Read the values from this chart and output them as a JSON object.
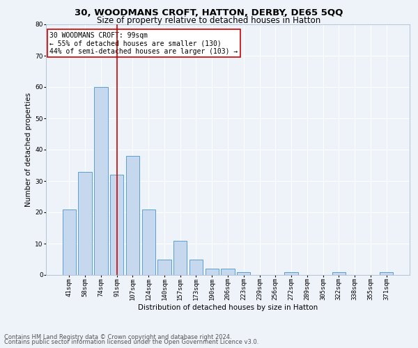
{
  "title": "30, WOODMANS CROFT, HATTON, DERBY, DE65 5QQ",
  "subtitle": "Size of property relative to detached houses in Hatton",
  "xlabel": "Distribution of detached houses by size in Hatton",
  "ylabel": "Number of detached properties",
  "categories": [
    "41sqm",
    "58sqm",
    "74sqm",
    "91sqm",
    "107sqm",
    "124sqm",
    "140sqm",
    "157sqm",
    "173sqm",
    "190sqm",
    "206sqm",
    "223sqm",
    "239sqm",
    "256sqm",
    "272sqm",
    "289sqm",
    "305sqm",
    "322sqm",
    "338sqm",
    "355sqm",
    "371sqm"
  ],
  "values": [
    21,
    33,
    60,
    32,
    38,
    21,
    5,
    11,
    5,
    2,
    2,
    1,
    0,
    0,
    1,
    0,
    0,
    1,
    0,
    0,
    1
  ],
  "bar_color": "#c5d8ee",
  "bar_edge_color": "#5a9fd4",
  "red_line_index": 3,
  "annotation_line1": "30 WOODMANS CROFT: 99sqm",
  "annotation_line2": "← 55% of detached houses are smaller (130)",
  "annotation_line3": "44% of semi-detached houses are larger (103) →",
  "annotation_box_color": "#ffffff",
  "annotation_border_color": "#cc0000",
  "ylim": [
    0,
    80
  ],
  "yticks": [
    0,
    10,
    20,
    30,
    40,
    50,
    60,
    70,
    80
  ],
  "footer_line1": "Contains HM Land Registry data © Crown copyright and database right 2024.",
  "footer_line2": "Contains public sector information licensed under the Open Government Licence v3.0.",
  "bg_color": "#eef2f9",
  "plot_bg_color": "#eef2f9",
  "grid_color": "#ffffff",
  "title_fontsize": 9.5,
  "subtitle_fontsize": 8.5,
  "axis_label_fontsize": 7.5,
  "tick_fontsize": 6.5,
  "annotation_fontsize": 7,
  "footer_fontsize": 6
}
